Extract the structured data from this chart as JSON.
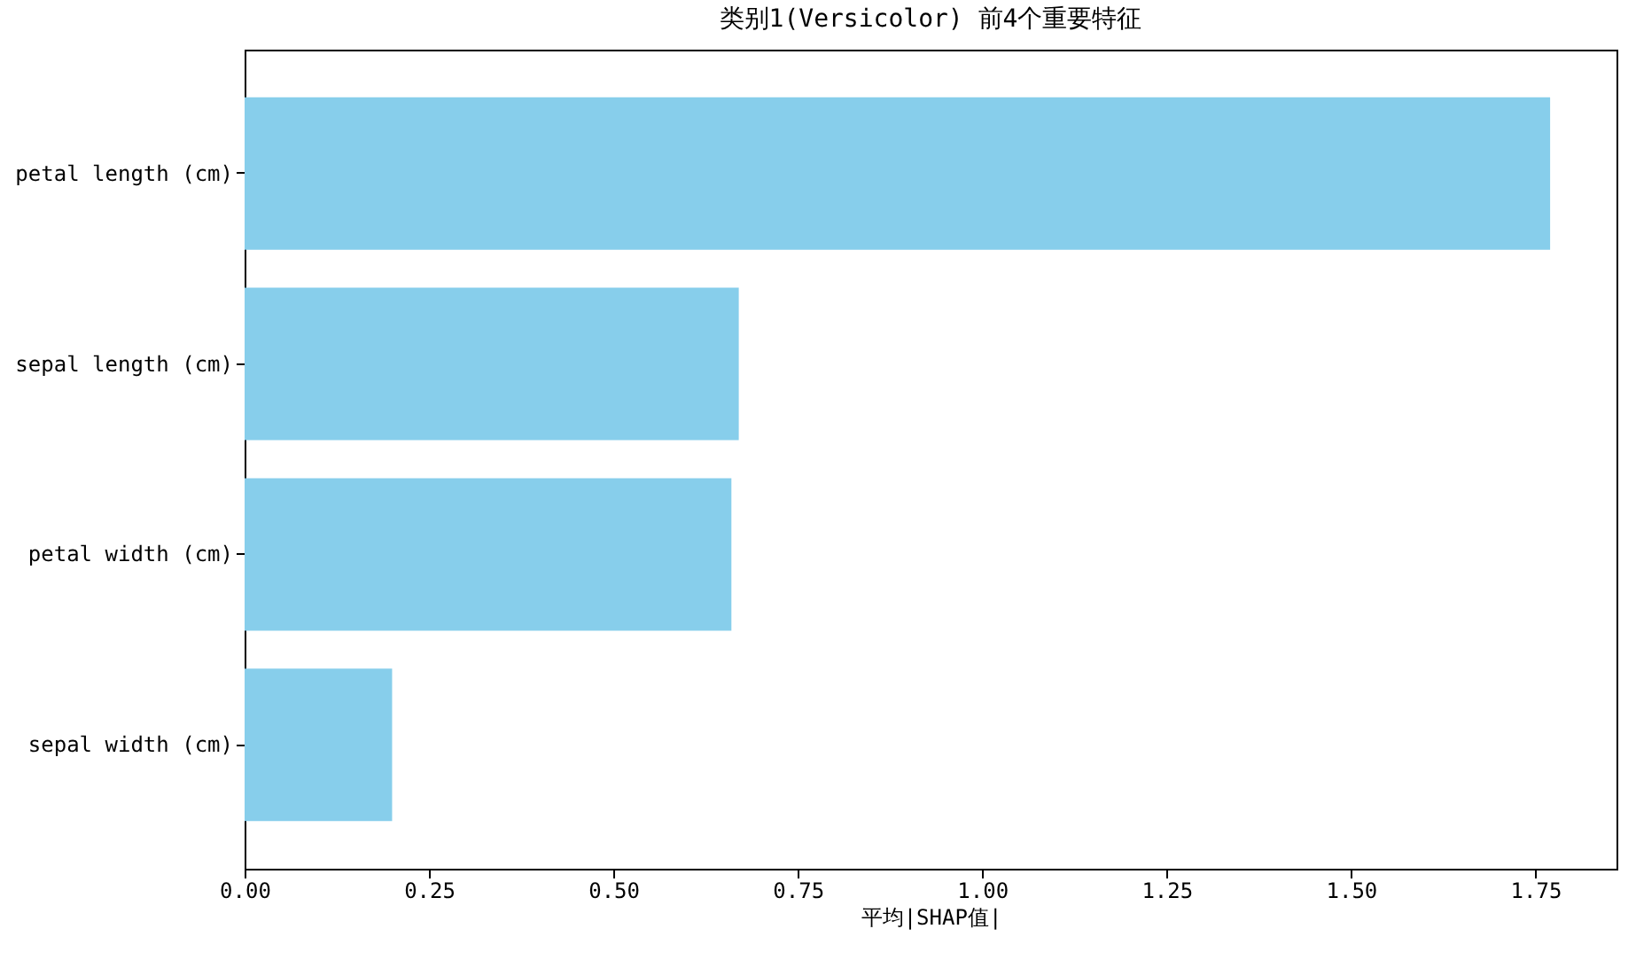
{
  "chart_data": {
    "type": "bar",
    "orientation": "horizontal",
    "title": "类别1(Versicolor) 前4个重要特征",
    "xlabel": "平均|SHAP值|",
    "categories": [
      "petal length (cm)",
      "sepal length (cm)",
      "petal width (cm)",
      "sepal width (cm)"
    ],
    "values": [
      1.77,
      0.67,
      0.66,
      0.2
    ],
    "color": "#87ceeb",
    "xlim": [
      0,
      1.86
    ],
    "xticks": [
      {
        "value": 0,
        "label": "0.00"
      },
      {
        "value": 0.25,
        "label": "0.25"
      },
      {
        "value": 0.5,
        "label": "0.50"
      },
      {
        "value": 0.75,
        "label": "0.75"
      },
      {
        "value": 1,
        "label": "1.00"
      },
      {
        "value": 1.25,
        "label": "1.25"
      },
      {
        "value": 1.5,
        "label": "1.50"
      },
      {
        "value": 1.75,
        "label": "1.75"
      }
    ],
    "grid": false
  }
}
